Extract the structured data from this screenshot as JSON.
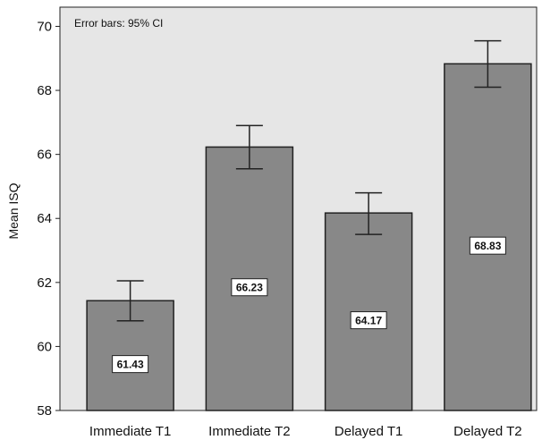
{
  "chart_data": {
    "type": "bar",
    "categories": [
      "Immediate T1",
      "Immediate T2",
      "Delayed T1",
      "Delayed T2"
    ],
    "values": [
      61.43,
      66.23,
      64.17,
      68.83
    ],
    "value_labels": [
      "61.43",
      "66.23",
      "64.17",
      "68.83"
    ],
    "error_low": [
      60.8,
      65.55,
      63.5,
      68.1
    ],
    "error_high": [
      62.05,
      66.9,
      64.8,
      69.55
    ],
    "title": "",
    "xlabel": "",
    "ylabel": "Mean ISQ",
    "ylim": [
      58,
      70.6
    ],
    "yticks": [
      58,
      60,
      62,
      64,
      66,
      68,
      70
    ],
    "annotation": "Error bars: 95% CI",
    "grid": false,
    "colors": {
      "plot_background": "#e6e6e6",
      "bar_fill": "#888888",
      "bar_stroke": "#222222",
      "error_bar": "#222222",
      "label_box": "#ffffff"
    }
  }
}
